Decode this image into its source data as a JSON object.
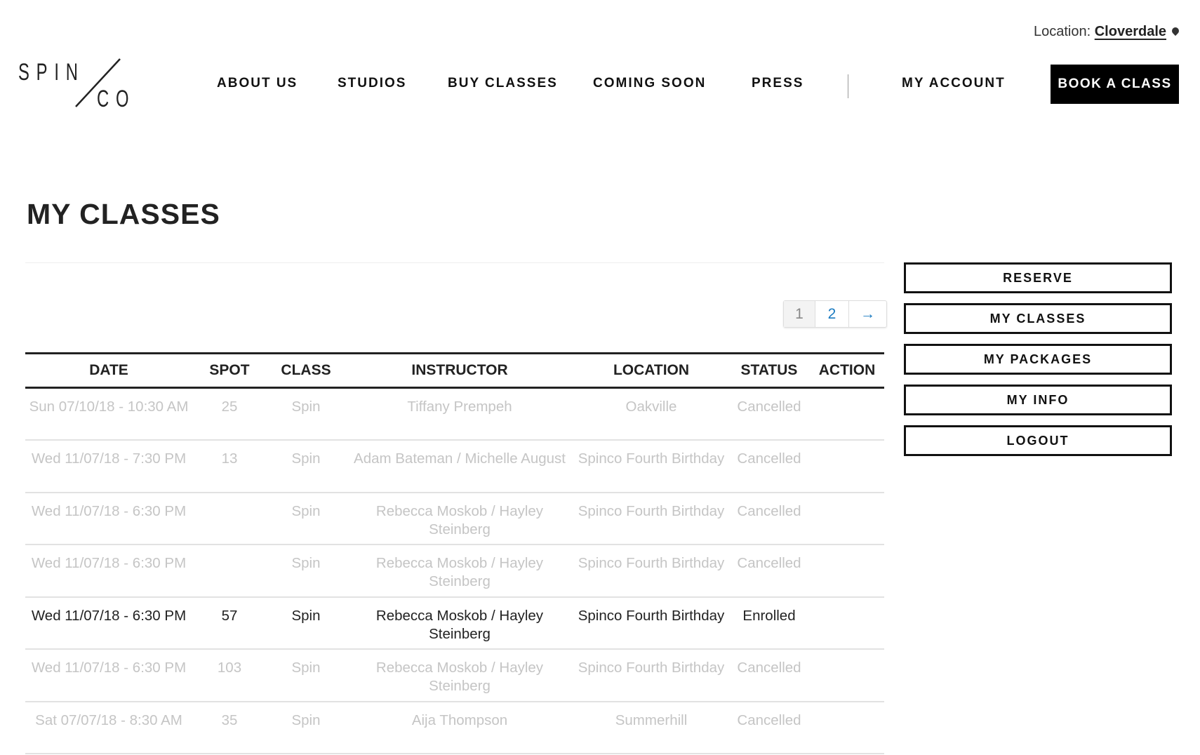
{
  "location": {
    "label": "Location:",
    "value": "Cloverdale",
    "icon": "map-pin-icon"
  },
  "logo": {
    "text": "SPIN/CO"
  },
  "nav": [
    "ABOUT US",
    "STUDIOS",
    "BUY CLASSES",
    "COMING SOON",
    "PRESS",
    "MY ACCOUNT"
  ],
  "book_label": "BOOK A CLASS",
  "title": "MY CLASSES",
  "pagination": {
    "pages": [
      "1",
      "2"
    ],
    "next": "→",
    "current": "1"
  },
  "table": {
    "headers": [
      "DATE",
      "SPOT",
      "CLASS",
      "INSTRUCTOR",
      "LOCATION",
      "STATUS",
      "ACTION"
    ],
    "rows": [
      [
        "Sun 07/10/18 - 10:30 AM",
        "25",
        "Spin",
        "Tiffany Prempeh",
        "Oakville",
        "Cancelled",
        ""
      ],
      [
        "Wed 11/07/18 - 7:30 PM",
        "13",
        "Spin",
        "Adam Bateman / Michelle August",
        "Spinco Fourth Birthday",
        "Cancelled",
        ""
      ],
      [
        "Wed 11/07/18 - 6:30 PM",
        "",
        "Spin",
        "Rebecca Moskob / Hayley Steinberg",
        "Spinco Fourth Birthday",
        "Cancelled",
        ""
      ],
      [
        "Wed 11/07/18 - 6:30 PM",
        "",
        "Spin",
        "Rebecca Moskob / Hayley Steinberg",
        "Spinco Fourth Birthday",
        "Cancelled",
        ""
      ],
      [
        "Wed 11/07/18 - 6:30 PM",
        "57",
        "Spin",
        "Rebecca Moskob / Hayley Steinberg",
        "Spinco Fourth Birthday",
        "Enrolled",
        ""
      ],
      [
        "Wed 11/07/18 - 6:30 PM",
        "103",
        "Spin",
        "Rebecca Moskob / Hayley Steinberg",
        "Spinco Fourth Birthday",
        "Cancelled",
        ""
      ],
      [
        "Sat 07/07/18 - 8:30 AM",
        "35",
        "Spin",
        "Aija Thompson",
        "Summerhill",
        "Cancelled",
        ""
      ]
    ]
  },
  "sidebar": [
    "RESERVE",
    "MY CLASSES",
    "MY PACKAGES",
    "MY INFO",
    "LOGOUT"
  ]
}
